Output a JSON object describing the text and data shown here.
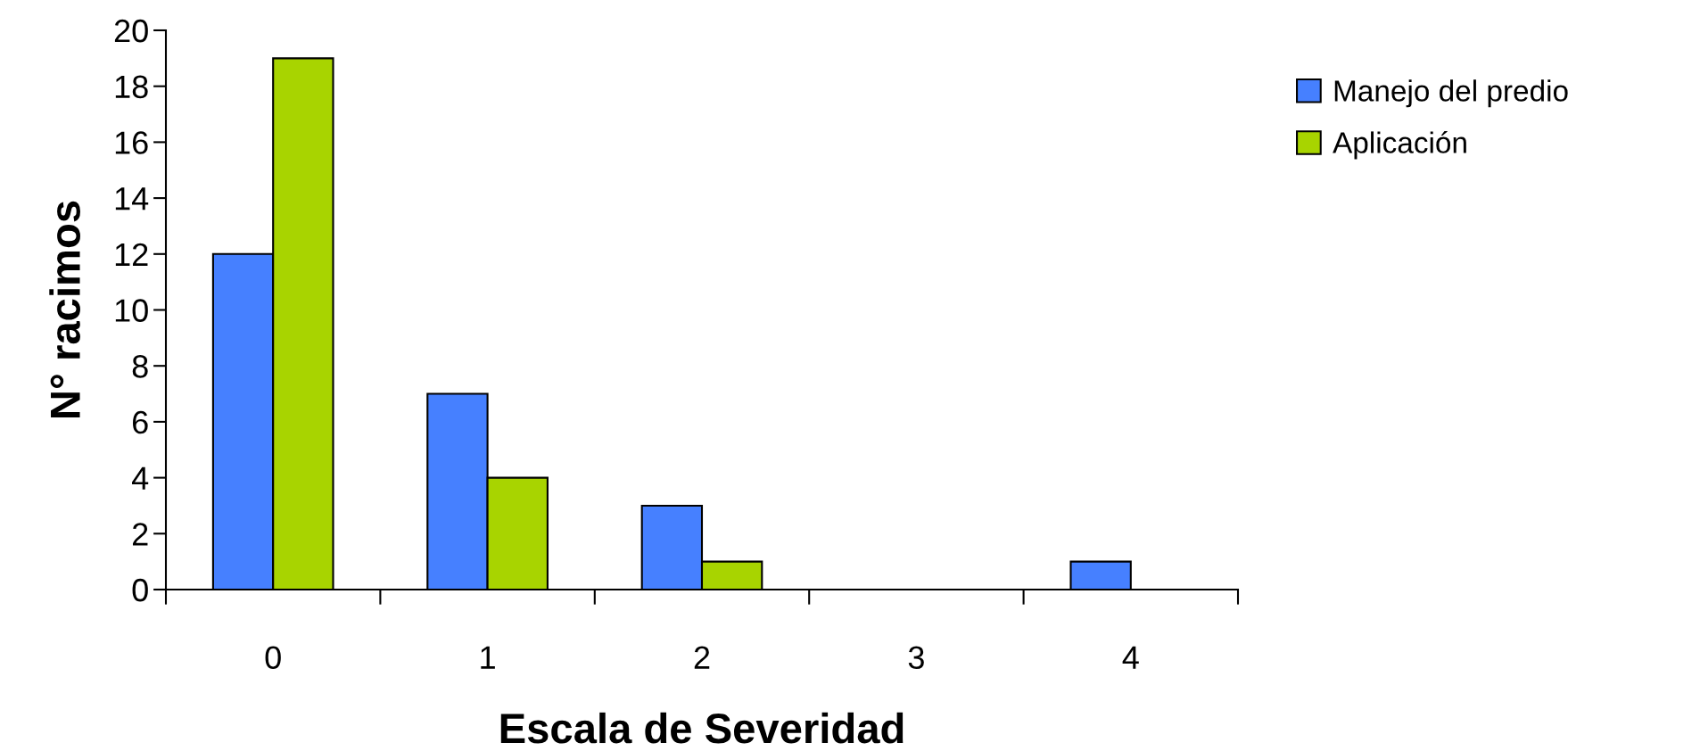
{
  "chart_data": {
    "type": "bar",
    "xlabel": "Escala de Severidad",
    "ylabel": "N° racimos",
    "categories": [
      "0",
      "1",
      "2",
      "3",
      "4"
    ],
    "series": [
      {
        "name": "Manejo del predio",
        "color": "#4680ff",
        "values": [
          12,
          7,
          3,
          0,
          1
        ]
      },
      {
        "name": "Aplicación",
        "color": "#a8d400",
        "values": [
          19,
          4,
          1,
          0,
          0
        ]
      }
    ],
    "ylim": [
      0,
      20
    ],
    "yticks": [
      0,
      2,
      4,
      6,
      8,
      10,
      12,
      14,
      16,
      18,
      20
    ],
    "grid": false,
    "legend": "top right"
  }
}
